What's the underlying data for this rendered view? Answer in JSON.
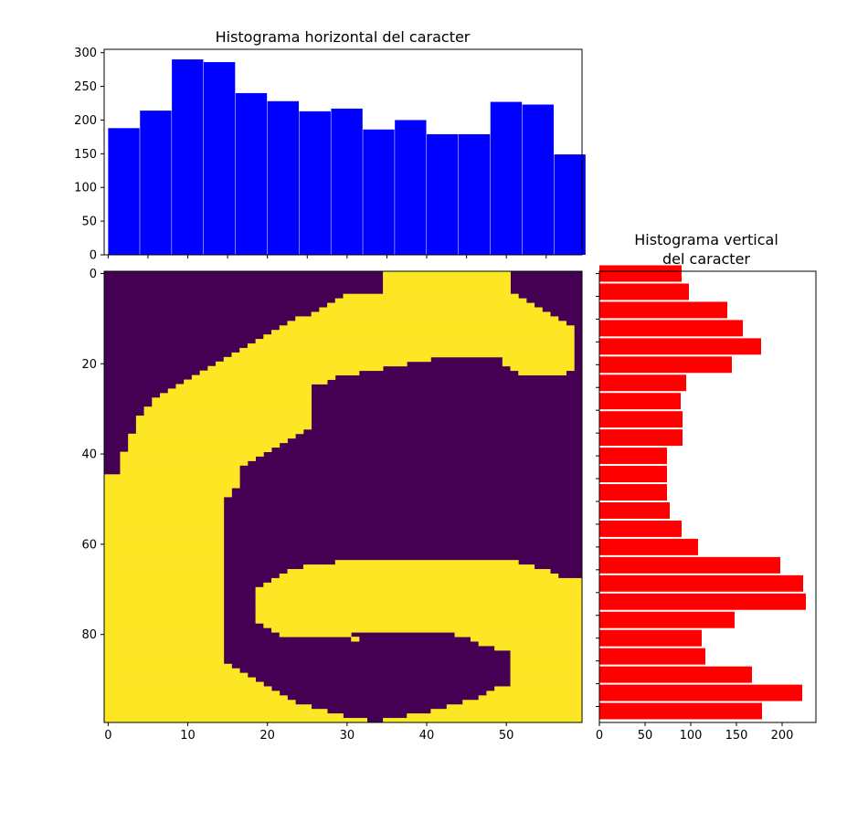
{
  "chart_data": [
    {
      "type": "bar",
      "title": "Histograma horizontal del caracter",
      "xlabel": "",
      "ylabel": "",
      "x": [
        2,
        6,
        10,
        14,
        18,
        22,
        26,
        30,
        34,
        38,
        42,
        46,
        50,
        54,
        58
      ],
      "values": [
        188,
        214,
        290,
        286,
        240,
        228,
        213,
        217,
        186,
        200,
        179,
        179,
        227,
        223,
        149
      ],
      "xlim": [
        -0.5,
        59.5
      ],
      "ylim": [
        0,
        305
      ],
      "yticks": [
        0,
        50,
        100,
        150,
        200,
        250,
        300
      ],
      "xticks": [
        0,
        10,
        20,
        30,
        40,
        50
      ],
      "xtick_labels_shown": false,
      "bar_color": "#0000ff"
    },
    {
      "type": "heatmap",
      "title": "",
      "xlabel": "",
      "ylabel": "",
      "colormap": "viridis",
      "low_color": "#440154",
      "high_color": "#fde725",
      "shape": [
        100,
        60
      ],
      "xticks": [
        0,
        10,
        20,
        30,
        40,
        50
      ],
      "yticks": [
        0,
        20,
        40,
        60,
        80
      ],
      "xlim": [
        -0.5,
        59.5
      ],
      "ylim": [
        99.5,
        -0.5
      ],
      "row_segments": [
        [
          [
            35,
            50
          ]
        ],
        [
          [
            35,
            50
          ]
        ],
        [
          [
            35,
            50
          ]
        ],
        [
          [
            35,
            50
          ]
        ],
        [
          [
            35,
            50
          ]
        ],
        [
          [
            30,
            51
          ]
        ],
        [
          [
            29,
            52
          ]
        ],
        [
          [
            28,
            53
          ]
        ],
        [
          [
            27,
            54
          ]
        ],
        [
          [
            26,
            55
          ]
        ],
        [
          [
            24,
            56
          ]
        ],
        [
          [
            23,
            57
          ]
        ],
        [
          [
            22,
            58
          ]
        ],
        [
          [
            21,
            58
          ]
        ],
        [
          [
            20,
            58
          ]
        ],
        [
          [
            19,
            58
          ]
        ],
        [
          [
            18,
            58
          ]
        ],
        [
          [
            17,
            58
          ]
        ],
        [
          [
            16,
            58
          ]
        ],
        [
          [
            15,
            40
          ],
          [
            50,
            58
          ]
        ],
        [
          [
            14,
            37
          ],
          [
            50,
            58
          ]
        ],
        [
          [
            13,
            34
          ],
          [
            51,
            58
          ]
        ],
        [
          [
            12,
            31
          ],
          [
            52,
            57
          ]
        ],
        [
          [
            11,
            28
          ]
        ],
        [
          [
            10,
            27
          ]
        ],
        [
          [
            9,
            25
          ]
        ],
        [
          [
            8,
            25
          ]
        ],
        [
          [
            7,
            25
          ]
        ],
        [
          [
            6,
            25
          ]
        ],
        [
          [
            6,
            25
          ]
        ],
        [
          [
            5,
            25
          ]
        ],
        [
          [
            5,
            25
          ]
        ],
        [
          [
            4,
            25
          ]
        ],
        [
          [
            4,
            25
          ]
        ],
        [
          [
            4,
            25
          ]
        ],
        [
          [
            4,
            24
          ]
        ],
        [
          [
            3,
            23
          ]
        ],
        [
          [
            3,
            22
          ]
        ],
        [
          [
            3,
            21
          ]
        ],
        [
          [
            3,
            20
          ]
        ],
        [
          [
            2,
            19
          ]
        ],
        [
          [
            2,
            18
          ]
        ],
        [
          [
            2,
            17
          ]
        ],
        [
          [
            2,
            16
          ]
        ],
        [
          [
            2,
            16
          ]
        ],
        [
          [
            0,
            16
          ]
        ],
        [
          [
            0,
            16
          ]
        ],
        [
          [
            0,
            16
          ]
        ],
        [
          [
            0,
            15
          ]
        ],
        [
          [
            0,
            15
          ]
        ],
        [
          [
            0,
            14
          ]
        ],
        [
          [
            0,
            14
          ]
        ],
        [
          [
            0,
            14
          ]
        ],
        [
          [
            0,
            14
          ]
        ],
        [
          [
            0,
            14
          ]
        ],
        [
          [
            0,
            14
          ]
        ],
        [
          [
            0,
            14
          ]
        ],
        [
          [
            0,
            14
          ]
        ],
        [
          [
            0,
            14
          ]
        ],
        [
          [
            0,
            14
          ]
        ],
        [
          [
            0,
            14
          ]
        ],
        [
          [
            0,
            14
          ]
        ],
        [
          [
            0,
            14
          ]
        ],
        [
          [
            0,
            14
          ]
        ],
        [
          [
            0,
            14
          ],
          [
            29,
            51
          ]
        ],
        [
          [
            0,
            14
          ],
          [
            25,
            53
          ]
        ],
        [
          [
            0,
            14
          ],
          [
            23,
            55
          ]
        ],
        [
          [
            0,
            14
          ],
          [
            22,
            56
          ]
        ],
        [
          [
            0,
            14
          ],
          [
            21,
            57
          ],
          [
            58,
            59
          ]
        ],
        [
          [
            0,
            14
          ],
          [
            20,
            59
          ]
        ],
        [
          [
            0,
            14
          ],
          [
            19,
            59
          ]
        ],
        [
          [
            0,
            14
          ],
          [
            19,
            59
          ]
        ],
        [
          [
            0,
            14
          ],
          [
            19,
            59
          ]
        ],
        [
          [
            0,
            14
          ],
          [
            19,
            59
          ]
        ],
        [
          [
            0,
            14
          ],
          [
            19,
            59
          ]
        ],
        [
          [
            0,
            14
          ],
          [
            19,
            59
          ]
        ],
        [
          [
            0,
            14
          ],
          [
            19,
            59
          ]
        ],
        [
          [
            0,
            14
          ],
          [
            19,
            59
          ]
        ],
        [
          [
            0,
            14
          ],
          [
            20,
            59
          ]
        ],
        [
          [
            0,
            14
          ],
          [
            21,
            59
          ]
        ],
        [
          [
            0,
            14
          ],
          [
            22,
            30
          ],
          [
            44,
            59
          ]
        ],
        [
          [
            0,
            14
          ],
          [
            31,
            31
          ],
          [
            46,
            59
          ]
        ],
        [
          [
            0,
            14
          ],
          [
            47,
            59
          ]
        ],
        [
          [
            0,
            14
          ],
          [
            49,
            59
          ]
        ],
        [
          [
            0,
            14
          ],
          [
            51,
            59
          ]
        ],
        [
          [
            0,
            14
          ],
          [
            51,
            59
          ]
        ],
        [
          [
            0,
            14
          ],
          [
            51,
            59
          ]
        ],
        [
          [
            0,
            15
          ],
          [
            51,
            59
          ]
        ],
        [
          [
            0,
            16
          ],
          [
            51,
            59
          ]
        ],
        [
          [
            0,
            17
          ],
          [
            51,
            59
          ]
        ],
        [
          [
            0,
            18
          ],
          [
            51,
            59
          ]
        ],
        [
          [
            0,
            19
          ],
          [
            51,
            59
          ]
        ],
        [
          [
            0,
            20
          ],
          [
            49,
            59
          ]
        ],
        [
          [
            0,
            21
          ],
          [
            48,
            59
          ]
        ],
        [
          [
            0,
            22
          ],
          [
            47,
            59
          ]
        ],
        [
          [
            0,
            23
          ],
          [
            45,
            59
          ]
        ],
        [
          [
            0,
            25
          ],
          [
            43,
            59
          ]
        ],
        [
          [
            0,
            27
          ],
          [
            41,
            59
          ]
        ],
        [
          [
            0,
            29
          ],
          [
            38,
            59
          ]
        ],
        [
          [
            0,
            32
          ],
          [
            35,
            59
          ]
        ]
      ],
      "invert_base": true
    },
    {
      "type": "bar",
      "orientation": "horizontal",
      "title": "Histograma vertical\ndel caracter",
      "xlabel": "",
      "ylabel": "",
      "y": [
        0,
        4,
        8,
        12,
        16,
        20,
        24,
        28,
        32,
        36,
        40,
        44,
        48,
        52,
        56,
        60,
        64,
        68,
        72,
        76,
        80,
        84,
        88,
        92,
        96
      ],
      "values": [
        90,
        98,
        140,
        157,
        177,
        145,
        95,
        89,
        91,
        91,
        74,
        74,
        74,
        77,
        90,
        108,
        198,
        223,
        226,
        148,
        112,
        116,
        167,
        222,
        178
      ],
      "ylim": [
        98.5,
        -0.5
      ],
      "xlim": [
        0,
        237
      ],
      "xticks": [
        0,
        50,
        100,
        150,
        200
      ],
      "ytick_labels_shown": false,
      "bar_color": "#ff0000"
    }
  ]
}
